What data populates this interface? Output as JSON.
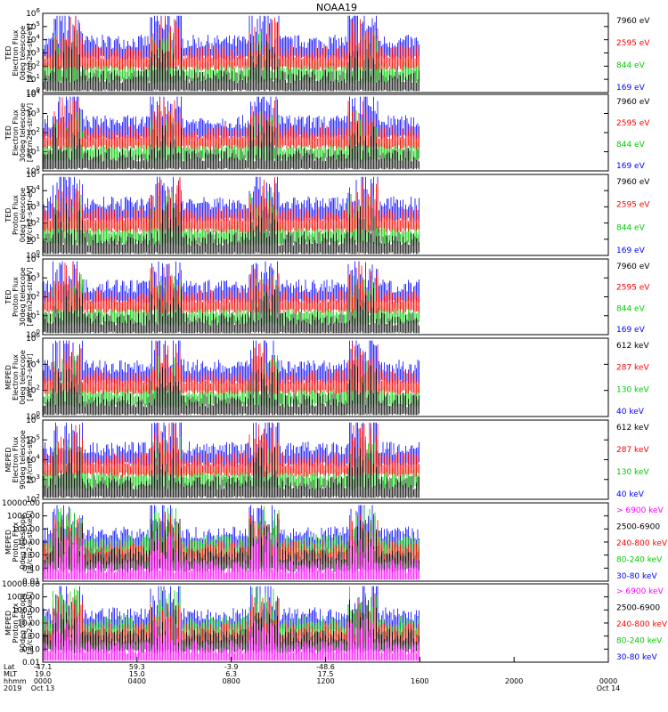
{
  "title": "NOAA19",
  "x_axis": {
    "row_labels": [
      "Lat",
      "MLT",
      "hhmm",
      "2019"
    ],
    "ticks": [
      {
        "hhmm": "0000",
        "lat": "-47.1",
        "mlt": "19.0",
        "date": "Oct 13"
      },
      {
        "hhmm": "0400",
        "lat": "59.3",
        "mlt": "15.0",
        "date": ""
      },
      {
        "hhmm": "0800",
        "lat": "-3.9",
        "mlt": "6.3",
        "date": ""
      },
      {
        "hhmm": "1200",
        "lat": "-48.6",
        "mlt": "17.5",
        "date": ""
      },
      {
        "hhmm": "1600",
        "lat": "",
        "mlt": "",
        "date": ""
      },
      {
        "hhmm": "2000",
        "lat": "",
        "mlt": "",
        "date": ""
      },
      {
        "hhmm": "0000",
        "lat": "",
        "mlt": "",
        "date": "Oct 14"
      }
    ]
  },
  "chart_data": [
    {
      "type": "line",
      "ylabel_lines": [
        "TED",
        "Electron Flux",
        "0deg telescope",
        "[#/cm2-s-str-eV]"
      ],
      "scale": "log",
      "ytick_labels": [
        "10^0",
        "10^1",
        "10^2",
        "10^3",
        "10^4",
        "10^5",
        "10^6"
      ],
      "x_range_hours": [
        0,
        24
      ],
      "data_end_hour": 16.0,
      "legend": [
        {
          "label": "7960 eV",
          "color": "#000000"
        },
        {
          "label": "2595 eV",
          "color": "#ff0000"
        },
        {
          "label": "844 eV",
          "color": "#00cc00"
        },
        {
          "label": "169 eV",
          "color": "#0000ff"
        }
      ]
    },
    {
      "type": "line",
      "ylabel_lines": [
        "TED",
        "Electron Flux",
        "30deg telescope",
        "[#/cm2-s-str-eV]"
      ],
      "scale": "log",
      "ytick_labels": [
        "10^0",
        "10^1",
        "10^2",
        "10^3",
        "10^4"
      ],
      "x_range_hours": [
        0,
        24
      ],
      "data_end_hour": 16.0,
      "legend": [
        {
          "label": "7960 eV",
          "color": "#000000"
        },
        {
          "label": "2595 eV",
          "color": "#ff0000"
        },
        {
          "label": "844 eV",
          "color": "#00cc00"
        },
        {
          "label": "169 eV",
          "color": "#0000ff"
        }
      ]
    },
    {
      "type": "line",
      "ylabel_lines": [
        "TED",
        "Proton Flux",
        "0deg telescope",
        "[#/cm2-s-str-eV]"
      ],
      "scale": "log",
      "ytick_labels": [
        "10^0",
        "10^1",
        "10^2",
        "10^3",
        "10^4",
        "10^5"
      ],
      "x_range_hours": [
        0,
        24
      ],
      "data_end_hour": 16.0,
      "legend": [
        {
          "label": "7960 eV",
          "color": "#000000"
        },
        {
          "label": "2595 eV",
          "color": "#ff0000"
        },
        {
          "label": "844 eV",
          "color": "#00cc00"
        },
        {
          "label": "169 eV",
          "color": "#0000ff"
        }
      ]
    },
    {
      "type": "line",
      "ylabel_lines": [
        "TED",
        "Proton Flux",
        "30deg telescope",
        "[#/cm2-s-str-eV]"
      ],
      "scale": "log",
      "ytick_labels": [
        "10^0",
        "10^1",
        "10^2",
        "10^3",
        "10^4"
      ],
      "x_range_hours": [
        0,
        24
      ],
      "data_end_hour": 16.0,
      "legend": [
        {
          "label": "7960 eV",
          "color": "#000000"
        },
        {
          "label": "2595 eV",
          "color": "#ff0000"
        },
        {
          "label": "844 eV",
          "color": "#00cc00"
        },
        {
          "label": "169 eV",
          "color": "#0000ff"
        }
      ]
    },
    {
      "type": "line",
      "ylabel_lines": [
        "MEPED",
        "Electron Flux",
        "0deg telescope",
        "[#/cm2-s-str]"
      ],
      "scale": "log",
      "ytick_labels": [
        "10^0",
        "10^2",
        "10^4",
        "10^6"
      ],
      "x_range_hours": [
        0,
        24
      ],
      "data_end_hour": 16.0,
      "legend": [
        {
          "label": "612 keV",
          "color": "#000000"
        },
        {
          "label": "287 keV",
          "color": "#ff0000"
        },
        {
          "label": "130 keV",
          "color": "#00cc00"
        },
        {
          "label": "40 keV",
          "color": "#0000ff"
        }
      ]
    },
    {
      "type": "line",
      "ylabel_lines": [
        "MEPED",
        "Electron Flux",
        "90deg telescope",
        "[#/cm2-s-str]"
      ],
      "scale": "log",
      "ytick_labels": [
        "10^2",
        "10^3",
        "10^4",
        "10^5",
        "10^6"
      ],
      "x_range_hours": [
        0,
        24
      ],
      "data_end_hour": 16.0,
      "legend": [
        {
          "label": "612 keV",
          "color": "#000000"
        },
        {
          "label": "287 keV",
          "color": "#ff0000"
        },
        {
          "label": "130 keV",
          "color": "#00cc00"
        },
        {
          "label": "40 keV",
          "color": "#0000ff"
        }
      ]
    },
    {
      "type": "line",
      "ylabel_lines": [
        "MEPED",
        "Proton Flux",
        "0deg telescope",
        "[#/cm2-s-str-keV]"
      ],
      "scale": "log",
      "ytick_labels": [
        "0.01",
        "0.10",
        "1.00",
        "10.00",
        "100.00",
        "1000.00",
        "10000.00"
      ],
      "x_range_hours": [
        0,
        24
      ],
      "data_end_hour": 16.0,
      "legend": [
        {
          "label": "> 6900 keV",
          "color": "#ff00ff"
        },
        {
          "label": "2500-6900",
          "color": "#000000"
        },
        {
          "label": "240-800 keV",
          "color": "#ff0000"
        },
        {
          "label": "80-240 keV",
          "color": "#00cc00"
        },
        {
          "label": "30-80 keV",
          "color": "#0000ff"
        }
      ]
    },
    {
      "type": "line",
      "ylabel_lines": [
        "MEPED",
        "Proton Flux",
        "90deg telescope",
        "[#/cm2-s-str-keV]"
      ],
      "scale": "log",
      "ytick_labels": [
        "0.01",
        "0.10",
        "1.00",
        "10.00",
        "100.00",
        "1000.00",
        "10000.00"
      ],
      "x_range_hours": [
        0,
        24
      ],
      "data_end_hour": 16.0,
      "legend": [
        {
          "label": "> 6900 keV",
          "color": "#ff00ff"
        },
        {
          "label": "2500-6900",
          "color": "#000000"
        },
        {
          "label": "240-800 keV",
          "color": "#ff0000"
        },
        {
          "label": "80-240 keV",
          "color": "#00cc00"
        },
        {
          "label": "30-80 keV",
          "color": "#0000ff"
        }
      ]
    }
  ]
}
